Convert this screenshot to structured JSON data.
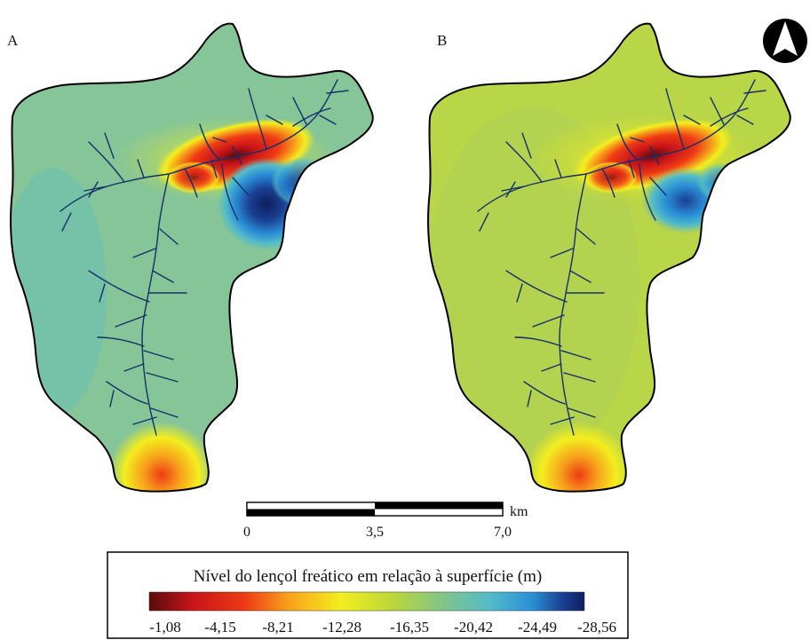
{
  "panels": [
    {
      "id": "A",
      "label": "A"
    },
    {
      "id": "B",
      "label": "B"
    }
  ],
  "north_arrow": {
    "icon": "north-arrow-icon"
  },
  "scale_bar": {
    "unit": "km",
    "ticks": [
      "0",
      "3,5",
      "7,0"
    ]
  },
  "legend": {
    "title": "Nível do lençol freático em relação à superfície (m)",
    "ticks": [
      "-1,08",
      "-4,15",
      "-8,21",
      "-12,28",
      "-16,35",
      "-20,42",
      "-24,49",
      "-28,56"
    ],
    "colors": [
      "#5a0c0c",
      "#c8141a",
      "#ee3b14",
      "#f7a11c",
      "#f3ee1e",
      "#bcd63a",
      "#7fc48c",
      "#54bcc8",
      "#2a8fd6",
      "#1b3f93",
      "#0d1f5e"
    ]
  }
}
